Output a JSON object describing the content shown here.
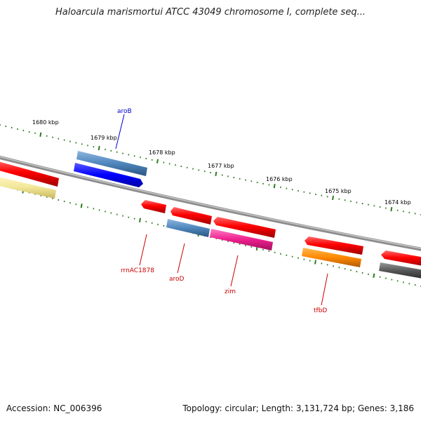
{
  "title": "Haloarcula marismortui ATCC 43049 chromosome I, complete seq...",
  "footer": {
    "accession": "Accession: NC_006396",
    "summary": "Topology: circular; Length: 3,131,724 bp; Genes: 3,186"
  },
  "scale_labels": [
    "1680 kbp",
    "1679 kbp",
    "1678 kbp",
    "1677 kbp",
    "1676 kbp",
    "1675 kbp",
    "1674 kbp"
  ],
  "gene_labels": {
    "aroB": "aroB",
    "rrnAC1878": "rrnAC1878",
    "aroD": "aroD",
    "zim": "zim",
    "tfbD": "tfbD"
  },
  "colors": {
    "backbone": "#8c8c8c",
    "tick": "#2e7d1e",
    "gene_red": "#ff0000",
    "gene_steelblue": "#4f86bd",
    "gene_blue": "#0000ff",
    "gene_khaki": "#f3e89a",
    "gene_magenta": "#ee1f8e",
    "gene_orange": "#ff8800",
    "gene_gray": "#555555",
    "label_blue": "#0000cc",
    "label_red": "#cc0000"
  }
}
